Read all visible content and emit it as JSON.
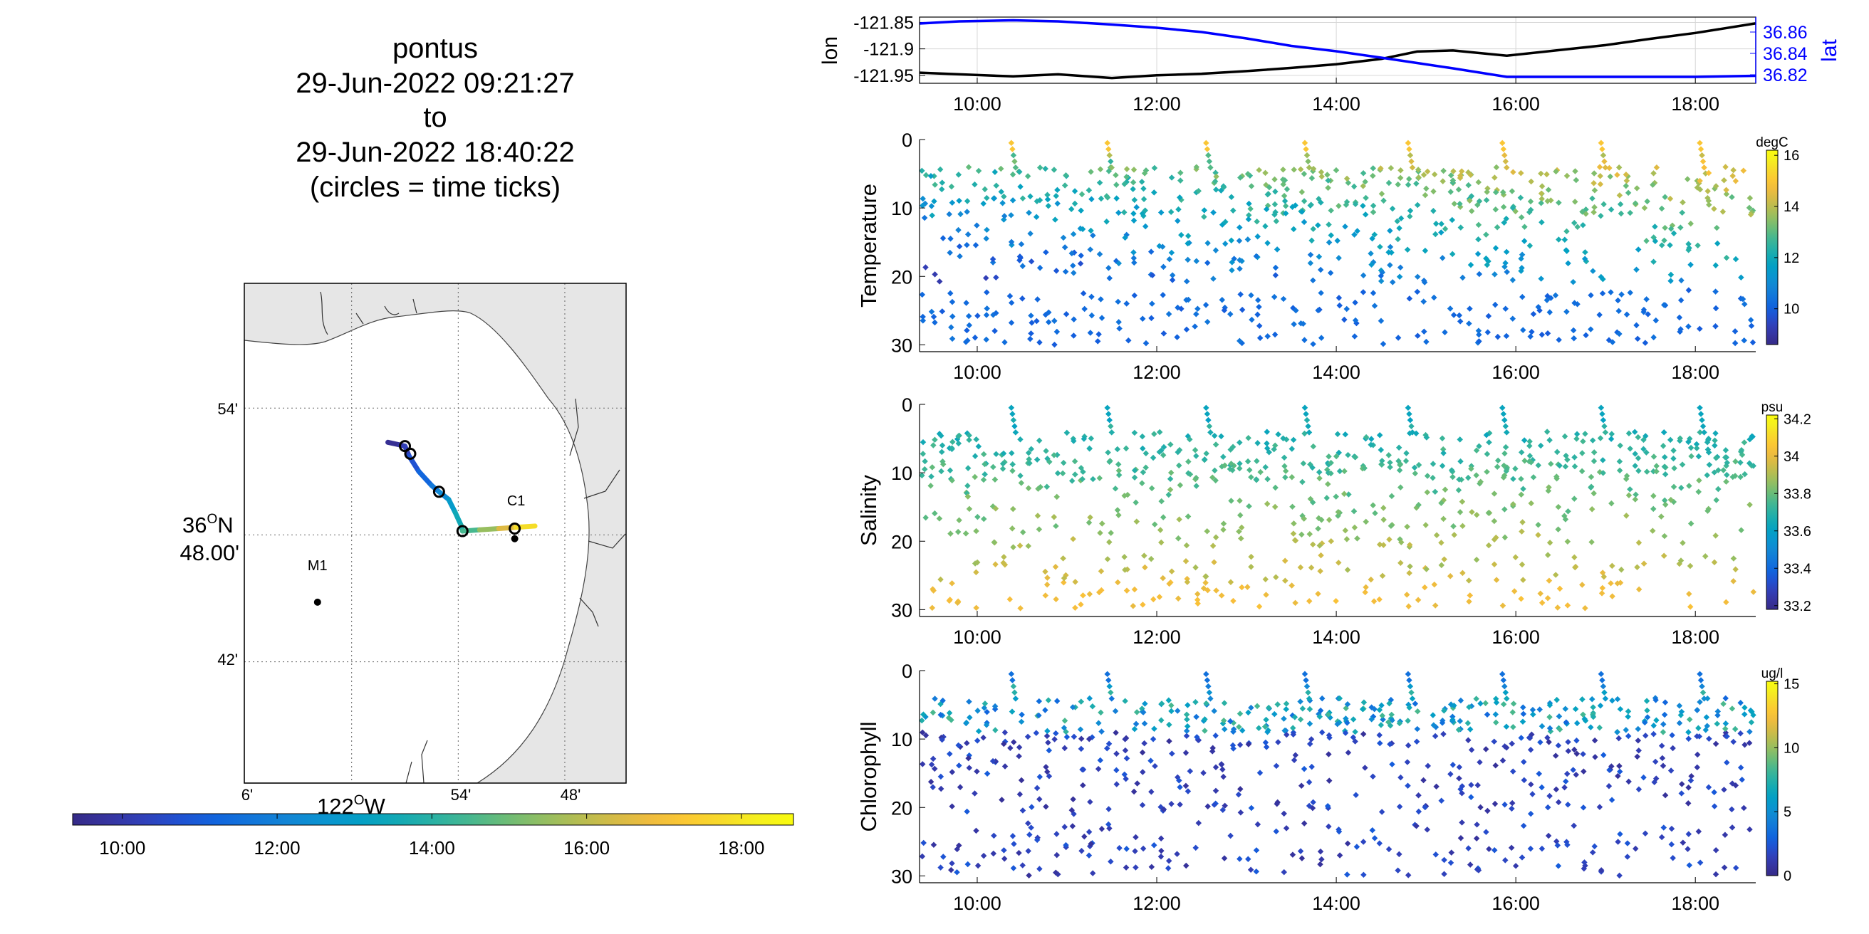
{
  "header": {
    "lines": [
      "pontus",
      "29-Jun-2022 09:21:27",
      "to",
      "29-Jun-2022 18:40:22",
      "(circles = time ticks)"
    ]
  },
  "colors": {
    "lon_line": "#000000",
    "lat_line": "#0000ff",
    "land": "#e6e6e6",
    "ocean": "#ffffff",
    "grid": "#d6d6d6"
  },
  "time_axis": {
    "start_hour": 9.3575,
    "end_hour": 18.6728,
    "tick_hours": [
      10,
      12,
      14,
      16,
      18
    ],
    "tick_labels": [
      "10:00",
      "12:00",
      "14:00",
      "16:00",
      "18:00"
    ]
  },
  "map": {
    "lat_ticks": [
      {
        "lat": 36.9,
        "label": "54'"
      },
      {
        "lat": 36.8,
        "label": "48.00'"
      },
      {
        "lat": 36.7,
        "label": "42'"
      }
    ],
    "lat_degree_label": "36",
    "lat_degree_sup": "O",
    "lat_degree_suffix": "N",
    "lon_ticks": [
      {
        "lon": -122.1,
        "label": "6'"
      },
      {
        "lon": -121.9,
        "label": "54'"
      },
      {
        "lon": -121.8,
        "label": "48'"
      }
    ],
    "lon_degree_label": "122",
    "lon_degree_sup": "O",
    "lon_degree_suffix": "W",
    "stations": [
      {
        "name": "M1",
        "lon": -122.032,
        "lat": 36.747
      },
      {
        "name": "C1",
        "lon": -121.847,
        "lat": 36.797
      }
    ],
    "track": [
      {
        "lon": -121.966,
        "lat": 36.873,
        "t": 9.36
      },
      {
        "lon": -121.955,
        "lat": 36.871,
        "t": 9.8
      },
      {
        "lon": -121.95,
        "lat": 36.87,
        "t": 10.0
      },
      {
        "lon": -121.946,
        "lat": 36.862,
        "t": 10.5
      },
      {
        "lon": -121.937,
        "lat": 36.85,
        "t": 11.0
      },
      {
        "lon": -121.925,
        "lat": 36.839,
        "t": 11.5
      },
      {
        "lon": -121.918,
        "lat": 36.834,
        "t": 12.0
      },
      {
        "lon": -121.909,
        "lat": 36.828,
        "t": 12.6
      },
      {
        "lon": -121.903,
        "lat": 36.818,
        "t": 13.2
      },
      {
        "lon": -121.897,
        "lat": 36.807,
        "t": 13.8
      },
      {
        "lon": -121.896,
        "lat": 36.803,
        "t": 14.0
      },
      {
        "lon": -121.88,
        "lat": 36.804,
        "t": 15.0
      },
      {
        "lon": -121.862,
        "lat": 36.805,
        "t": 16.0
      },
      {
        "lon": -121.846,
        "lat": 36.806,
        "t": 17.0
      },
      {
        "lon": -121.828,
        "lat": 36.807,
        "t": 18.67
      }
    ],
    "time_ticks": [
      {
        "lon": -121.95,
        "lat": 36.87
      },
      {
        "lon": -121.945,
        "lat": 36.864
      },
      {
        "lon": -121.918,
        "lat": 36.834
      },
      {
        "lon": -121.896,
        "lat": 36.803
      },
      {
        "lon": -121.847,
        "lat": 36.805
      }
    ]
  },
  "chart_data": [
    {
      "type": "line",
      "ylabel": "lon",
      "y2label": "lat",
      "x": [
        9.36,
        9.8,
        10.4,
        10.9,
        11.5,
        12.0,
        12.5,
        13.0,
        13.5,
        14.0,
        14.5,
        14.9,
        15.3,
        15.9,
        16.5,
        17.0,
        17.5,
        18.0,
        18.67
      ],
      "series": [
        {
          "name": "lon",
          "axis": "left",
          "values": [
            -121.945,
            -121.948,
            -121.952,
            -121.948,
            -121.955,
            -121.95,
            -121.947,
            -121.942,
            -121.936,
            -121.929,
            -121.919,
            -121.905,
            -121.903,
            -121.913,
            -121.902,
            -121.893,
            -121.881,
            -121.87,
            -121.852
          ]
        },
        {
          "name": "lat",
          "axis": "right",
          "values": [
            36.868,
            36.87,
            36.871,
            36.87,
            36.867,
            36.864,
            36.86,
            36.854,
            36.847,
            36.842,
            36.836,
            36.831,
            36.826,
            36.818,
            36.818,
            36.818,
            36.818,
            36.818,
            36.819
          ]
        }
      ],
      "ylim": [
        -121.965,
        -121.84
      ],
      "y2lim": [
        36.812,
        36.874
      ],
      "yticks": [
        -121.85,
        -121.9,
        -121.95
      ],
      "ytick_labels": [
        "-121.85",
        "-121.9",
        "-121.95"
      ],
      "y2ticks": [
        36.86,
        36.84,
        36.82
      ],
      "y2tick_labels": [
        "36.86",
        "36.84",
        "36.82"
      ],
      "grid": true
    },
    {
      "type": "scatter",
      "ylabel": "Temperature",
      "colorbar_unit": "degC",
      "ylim": [
        31,
        0
      ],
      "yticks": [
        0,
        10,
        20,
        30
      ],
      "clim": [
        8.6,
        16.2
      ],
      "cticks": [
        10,
        12,
        14,
        16
      ],
      "cycles": [
        {
          "t0": 9.36,
          "t1": 10.38,
          "trend": 0.4
        },
        {
          "t0": 10.38,
          "t1": 11.45,
          "trend": 0.8
        },
        {
          "t0": 11.45,
          "t1": 12.55,
          "trend": 1.0
        },
        {
          "t0": 12.55,
          "t1": 13.65,
          "trend": 1.2
        },
        {
          "t0": 13.65,
          "t1": 14.8,
          "trend": 1.4
        },
        {
          "t0": 14.8,
          "t1": 15.85,
          "trend": 1.6
        },
        {
          "t0": 15.85,
          "t1": 16.95,
          "trend": 1.9
        },
        {
          "t0": 16.95,
          "t1": 18.05,
          "trend": 2.2
        },
        {
          "t0": 18.05,
          "t1": 18.67,
          "trend": 2.5
        }
      ],
      "deep_band": {
        "depth": 26,
        "value": 10.0
      }
    },
    {
      "type": "scatter",
      "ylabel": "Salinity",
      "colorbar_unit": "psu",
      "ylim": [
        31,
        0
      ],
      "yticks": [
        0,
        10,
        20,
        30
      ],
      "clim": [
        33.18,
        34.22
      ],
      "cticks": [
        33.2,
        33.4,
        33.6,
        33.8,
        34,
        34.2
      ],
      "ctick_labels": [
        "33.2",
        "33.4",
        "33.6",
        "33.8",
        "34",
        "34.2"
      ],
      "surface_value": 33.65,
      "deep_value": 34.0
    },
    {
      "type": "scatter",
      "ylabel": "Chlorophyll",
      "colorbar_unit": "ug/l",
      "ylim": [
        31,
        0
      ],
      "yticks": [
        0,
        10,
        20,
        30
      ],
      "clim": [
        0,
        15.2
      ],
      "cticks": [
        0,
        5,
        10,
        15
      ],
      "surface_value": 4.5,
      "deep_value": 0.8
    }
  ],
  "time_colorbar": {
    "tick_labels": [
      "10:00",
      "12:00",
      "14:00",
      "16:00",
      "18:00"
    ]
  }
}
